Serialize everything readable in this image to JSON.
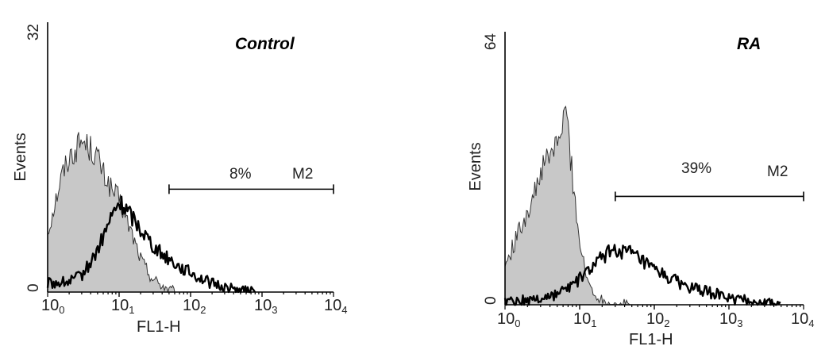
{
  "chart_data": [
    {
      "type": "area",
      "title": "Control",
      "xlabel": "FL1-H",
      "ylabel": "Events",
      "xscale": "log",
      "xlim": [
        1,
        10000
      ],
      "ylim": [
        0,
        32
      ],
      "x_ticks": [
        {
          "base": "10",
          "exp": "0",
          "value": 1
        },
        {
          "base": "10",
          "exp": "1",
          "value": 10
        },
        {
          "base": "10",
          "exp": "2",
          "value": 100
        },
        {
          "base": "10",
          "exp": "3",
          "value": 1000
        },
        {
          "base": "10",
          "exp": "4",
          "value": 10000
        }
      ],
      "y_tick_labels": {
        "min": "0",
        "max": "32"
      },
      "series": [
        {
          "role": "isotype",
          "style": "filled-gray",
          "x": [
            1,
            1.3,
            1.6,
            2,
            2.5,
            3,
            4,
            5,
            6,
            7,
            8,
            10,
            12,
            15,
            20,
            25,
            30,
            40,
            50,
            60
          ],
          "values": [
            7,
            11,
            14,
            16,
            17,
            18,
            17,
            16,
            14,
            13,
            12,
            11,
            9,
            7,
            4,
            2.5,
            1.5,
            0.8,
            0.3,
            0
          ]
        },
        {
          "role": "sample",
          "style": "black-line",
          "x": [
            1,
            2,
            3,
            4,
            5,
            6,
            7,
            8,
            9,
            10,
            12,
            15,
            20,
            25,
            30,
            40,
            50,
            70,
            100,
            150,
            200,
            300,
            500,
            800
          ],
          "values": [
            1,
            1.2,
            2,
            3.5,
            5,
            6.5,
            8,
            9,
            10,
            10.5,
            10,
            9,
            7.5,
            6.5,
            5.5,
            4.5,
            4,
            3,
            2.3,
            1.5,
            1,
            0.6,
            0.2,
            0
          ]
        }
      ],
      "annotations": {
        "gate": {
          "label": "M2",
          "percent": "8%",
          "x_start": 50,
          "x_end": 10000,
          "y": 12.2
        }
      }
    },
    {
      "type": "area",
      "title": "RA",
      "xlabel": "FL1-H",
      "ylabel": "Events",
      "xscale": "log",
      "xlim": [
        1,
        10000
      ],
      "ylim": [
        0,
        64
      ],
      "x_ticks": [
        {
          "base": "10",
          "exp": "0",
          "value": 1
        },
        {
          "base": "10",
          "exp": "1",
          "value": 10
        },
        {
          "base": "10",
          "exp": "2",
          "value": 100
        },
        {
          "base": "10",
          "exp": "3",
          "value": 1000
        },
        {
          "base": "10",
          "exp": "4",
          "value": 10000
        }
      ],
      "y_tick_labels": {
        "min": "0",
        "max": "64"
      },
      "series": [
        {
          "role": "isotype",
          "style": "filled-gray",
          "x": [
            1,
            1.3,
            1.6,
            2,
            2.5,
            3,
            4,
            5,
            6,
            6.5,
            7,
            8,
            10,
            12,
            15,
            20,
            25,
            30,
            40,
            50
          ],
          "values": [
            9,
            14,
            18,
            22,
            26,
            31,
            35,
            38,
            42,
            46,
            41,
            30,
            15,
            7,
            3,
            1.2,
            0.6,
            0.3,
            0.1,
            0
          ]
        },
        {
          "role": "sample",
          "style": "black-line",
          "x": [
            1,
            2,
            3,
            5,
            7,
            10,
            15,
            20,
            25,
            30,
            40,
            50,
            70,
            100,
            150,
            200,
            300,
            500,
            700,
            1000,
            2000,
            5000
          ],
          "values": [
            0.8,
            1,
            1.5,
            2.5,
            4,
            6,
            9,
            11,
            12.5,
            13,
            12.5,
            12,
            10,
            8,
            6.5,
            5.5,
            4,
            3,
            2.5,
            1.5,
            0.8,
            0
          ]
        }
      ],
      "annotations": {
        "gate": {
          "label": "M2",
          "percent": "39%",
          "x_start": 30,
          "x_end": 10000,
          "y": 25.4
        }
      }
    }
  ]
}
